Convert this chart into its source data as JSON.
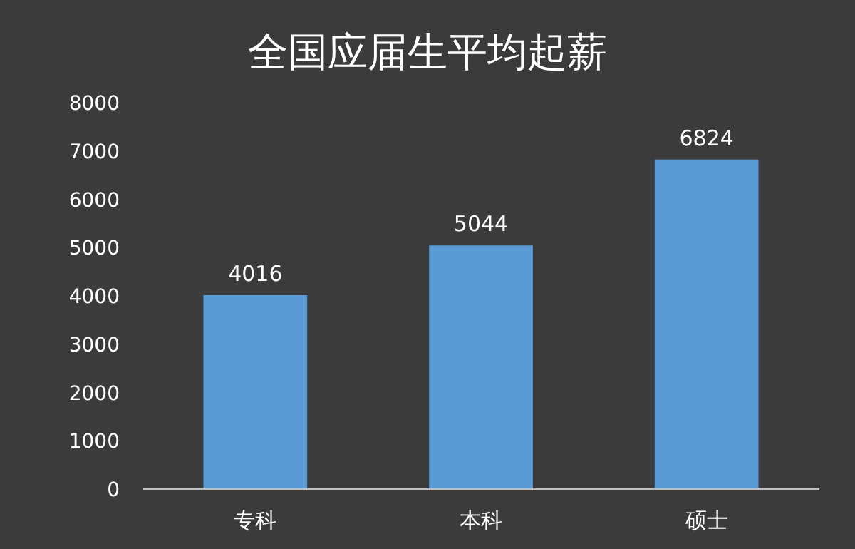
{
  "chart_data": {
    "type": "bar",
    "title": "全国应届生平均起薪",
    "categories": [
      "专科",
      "本科",
      "硕士"
    ],
    "values": [
      4016,
      5044,
      6824
    ],
    "color": "#5b9bd5",
    "ylim": [
      0,
      8000
    ],
    "yticks": [
      0,
      1000,
      2000,
      3000,
      4000,
      5000,
      6000,
      7000,
      8000
    ],
    "data_labels": true
  }
}
